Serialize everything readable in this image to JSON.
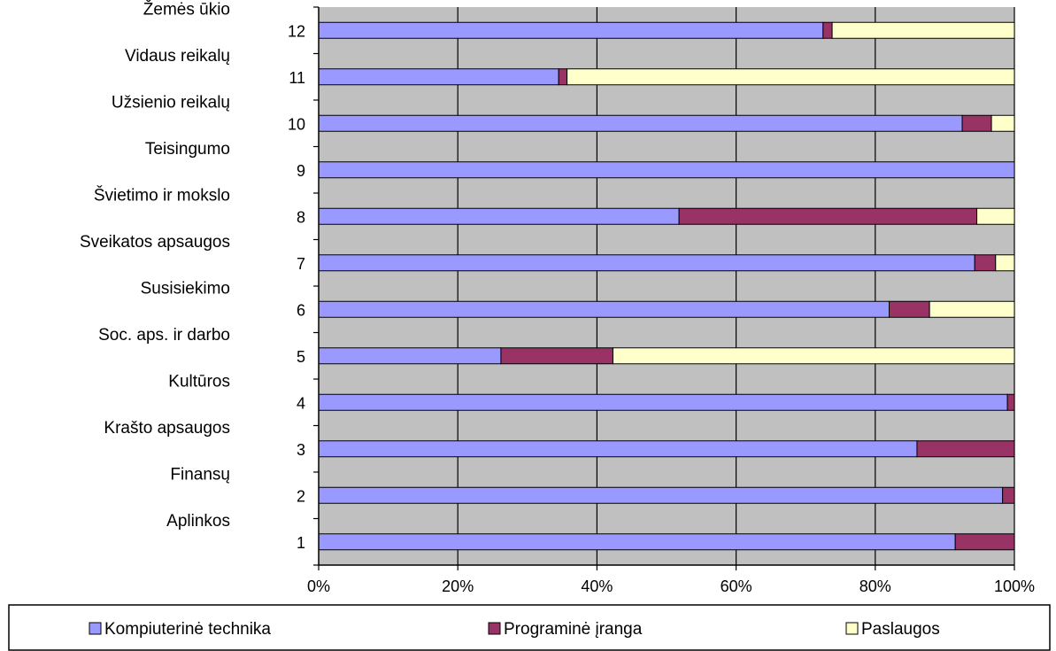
{
  "chart_data": {
    "type": "bar",
    "orientation": "horizontal",
    "stacked": "percent",
    "categories": [
      "1",
      "2",
      "3",
      "4",
      "5",
      "6",
      "7",
      "8",
      "9",
      "10",
      "11",
      "12"
    ],
    "category_names": [
      "Aplinkos",
      "Finansų",
      "Krašto apsaugos",
      "Kultūros",
      "Soc. aps. ir darbo",
      "Susisiekimo",
      "Sveikatos apsaugos",
      "Švietimo ir mokslo",
      "Teisingumo",
      "Užsienio reikalų",
      "Vidaus reikalų",
      "Žemės ūkio"
    ],
    "series": [
      {
        "name": "Kompiuterinė technika",
        "color": "#9999ff",
        "values": [
          91.5,
          98.3,
          86.0,
          99.0,
          26.2,
          82.0,
          94.3,
          51.8,
          100.0,
          92.5,
          34.5,
          72.5
        ]
      },
      {
        "name": "Programinė įranga",
        "color": "#993366",
        "values": [
          8.5,
          1.7,
          14.0,
          1.0,
          16.1,
          5.8,
          3.0,
          42.8,
          0.0,
          4.2,
          1.2,
          1.3
        ]
      },
      {
        "name": "Paslaugos",
        "color": "#ffffcc",
        "values": [
          0.0,
          0.0,
          0.0,
          0.0,
          57.7,
          12.2,
          2.7,
          5.4,
          0.0,
          3.3,
          64.3,
          26.2
        ]
      }
    ],
    "x_ticks": [
      "0%",
      "20%",
      "40%",
      "60%",
      "80%",
      "100%"
    ],
    "xlim": [
      0,
      100
    ],
    "grid": true,
    "plot_background": "#c0c0c0",
    "legend_position": "bottom"
  }
}
